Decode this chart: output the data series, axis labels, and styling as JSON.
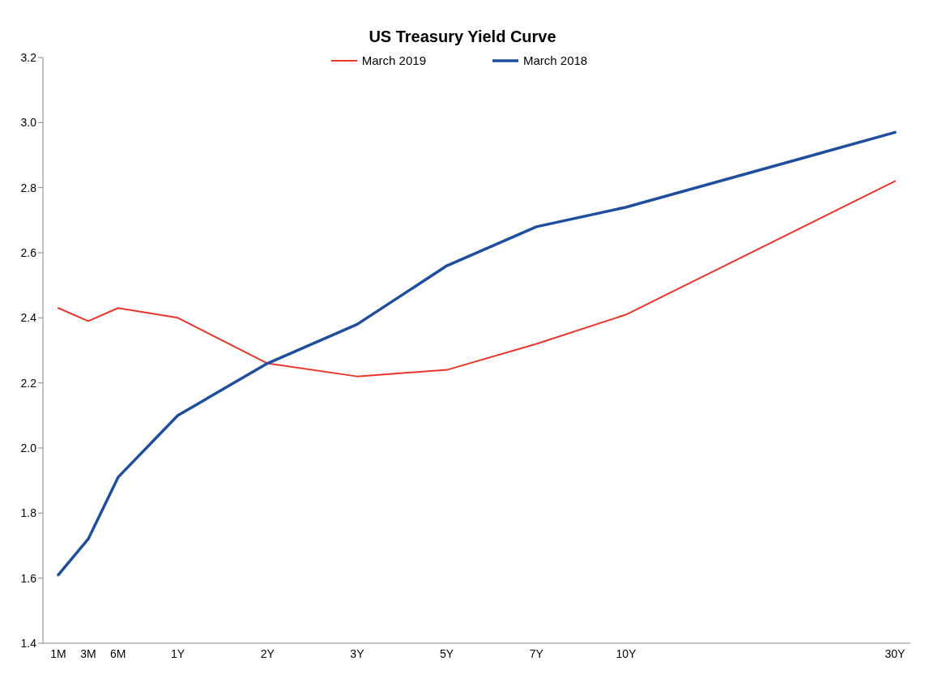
{
  "chart_data": {
    "type": "line",
    "title": "US Treasury Yield Curve",
    "categories": [
      "1M",
      "3M",
      "6M",
      null,
      "1Y",
      null,
      null,
      "2Y",
      null,
      null,
      "3Y",
      null,
      null,
      "5Y",
      null,
      null,
      "7Y",
      null,
      null,
      "10Y",
      null,
      null,
      null,
      null,
      null,
      null,
      null,
      null,
      "30Y"
    ],
    "ylim": [
      1.4,
      3.2
    ],
    "yticks": [
      1.4,
      1.6,
      1.8,
      {
        "value": 2,
        "label": "2.0"
      },
      2.2,
      2.4,
      2.6,
      2.8,
      {
        "value": 3,
        "label": "3.0"
      },
      3.2
    ],
    "series": [
      {
        "name": "March 2019",
        "color": "#e8352b",
        "values": [
          2.43,
          2.39,
          2.43,
          null,
          2.4,
          null,
          null,
          2.26,
          null,
          null,
          2.22,
          null,
          null,
          2.24,
          null,
          null,
          2.32,
          null,
          null,
          2.41,
          null,
          null,
          null,
          null,
          null,
          null,
          null,
          null,
          2.82
        ]
      },
      {
        "name": "March 2018",
        "color": "#1f4e9c",
        "values": [
          1.61,
          1.72,
          1.91,
          null,
          2.1,
          null,
          null,
          2.26,
          null,
          null,
          2.38,
          null,
          null,
          2.56,
          null,
          null,
          2.68,
          null,
          null,
          2.74,
          null,
          null,
          null,
          null,
          null,
          null,
          null,
          null,
          2.97
        ]
      }
    ],
    "legend": "top",
    "marker": "none",
    "line_style": "solid"
  }
}
